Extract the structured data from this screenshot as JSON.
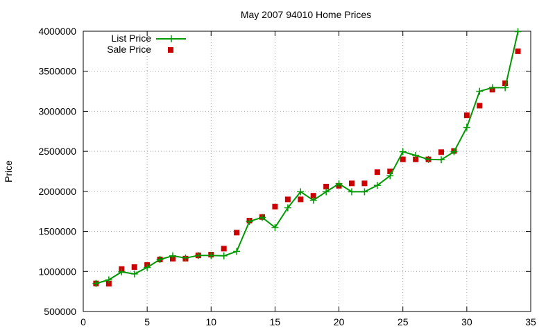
{
  "chart_data": {
    "type": "line",
    "title": "May 2007 94010 Home Prices",
    "xlabel": "",
    "ylabel": "Price",
    "xlim": [
      0,
      35
    ],
    "ylim": [
      500000,
      4000000
    ],
    "xticks": [
      0,
      5,
      10,
      15,
      20,
      25,
      30,
      35
    ],
    "yticks": [
      500000,
      1000000,
      1500000,
      2000000,
      2500000,
      3000000,
      3500000,
      4000000
    ],
    "xtick_labels": [
      "0",
      "5",
      "10",
      "15",
      "20",
      "25",
      "30",
      "35"
    ],
    "ytick_labels": [
      "500000",
      "1000000",
      "1500000",
      "2000000",
      "2500000",
      "3000000",
      "3500000",
      "4000000"
    ],
    "grid": true,
    "legend_position": "top-left",
    "series": [
      {
        "name": "List Price",
        "style": "linespoints",
        "marker": "plus",
        "color": "#009900",
        "x": [
          1,
          2,
          3,
          4,
          5,
          6,
          7,
          8,
          9,
          10,
          11,
          12,
          13,
          14,
          15,
          16,
          17,
          18,
          19,
          20,
          21,
          22,
          23,
          24,
          25,
          26,
          27,
          28,
          29,
          30,
          31,
          32,
          33,
          34
        ],
        "values": [
          850000,
          895000,
          995000,
          969000,
          1050000,
          1150000,
          1195000,
          1169000,
          1199000,
          1199000,
          1195000,
          1250000,
          1625000,
          1675000,
          1549000,
          1795000,
          1995000,
          1889000,
          1995000,
          2095000,
          1995000,
          1995000,
          2075000,
          2195000,
          2495000,
          2449000,
          2399000,
          2395000,
          2495000,
          2799000,
          3250000,
          3295000,
          3295000,
          3995000
        ]
      },
      {
        "name": "Sale Price",
        "style": "points",
        "marker": "square",
        "color": "#cc0000",
        "x": [
          1,
          2,
          3,
          4,
          5,
          6,
          7,
          8,
          9,
          10,
          11,
          12,
          13,
          14,
          15,
          16,
          17,
          18,
          19,
          20,
          21,
          22,
          23,
          24,
          25,
          26,
          27,
          28,
          29,
          30,
          31,
          32,
          33,
          34
        ],
        "values": [
          850000,
          848000,
          1030000,
          1055000,
          1080000,
          1150000,
          1160000,
          1160000,
          1200000,
          1210000,
          1285000,
          1485000,
          1635000,
          1680000,
          1810000,
          1900000,
          1900000,
          1945000,
          2060000,
          2070000,
          2100000,
          2100000,
          2240000,
          2250000,
          2400000,
          2400000,
          2400000,
          2490000,
          2505000,
          2950000,
          3070000,
          3270000,
          3350000,
          3750000
        ]
      }
    ]
  }
}
